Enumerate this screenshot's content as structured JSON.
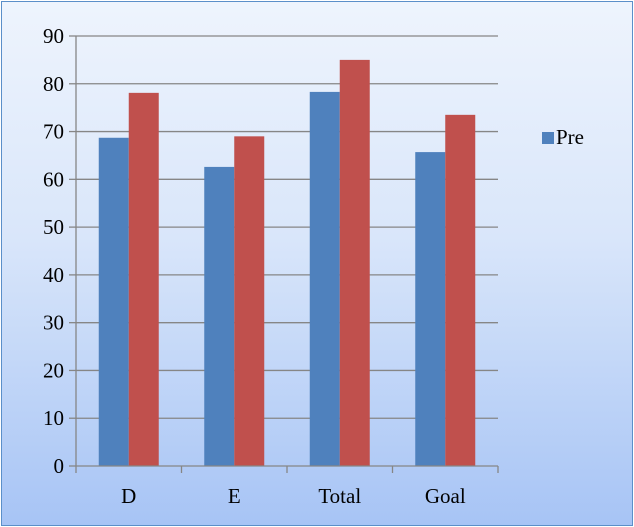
{
  "chart_data": {
    "type": "bar",
    "categories": [
      "D",
      "E",
      "Total",
      "Goal"
    ],
    "series": [
      {
        "name": "Pre",
        "values": [
          68.7,
          62.6,
          78.3,
          65.7
        ],
        "color": "#4f81bd"
      },
      {
        "name": "",
        "values": [
          78.1,
          69.0,
          85.0,
          73.5
        ],
        "color": "#c0504d"
      }
    ],
    "title": "",
    "xlabel": "",
    "ylabel": "",
    "ylim": [
      0,
      90
    ],
    "yticks": [
      0,
      10,
      20,
      30,
      40,
      50,
      60,
      70,
      80,
      90
    ],
    "grid": true,
    "legend": {
      "placement": "right",
      "entries": [
        "Pre"
      ]
    }
  }
}
